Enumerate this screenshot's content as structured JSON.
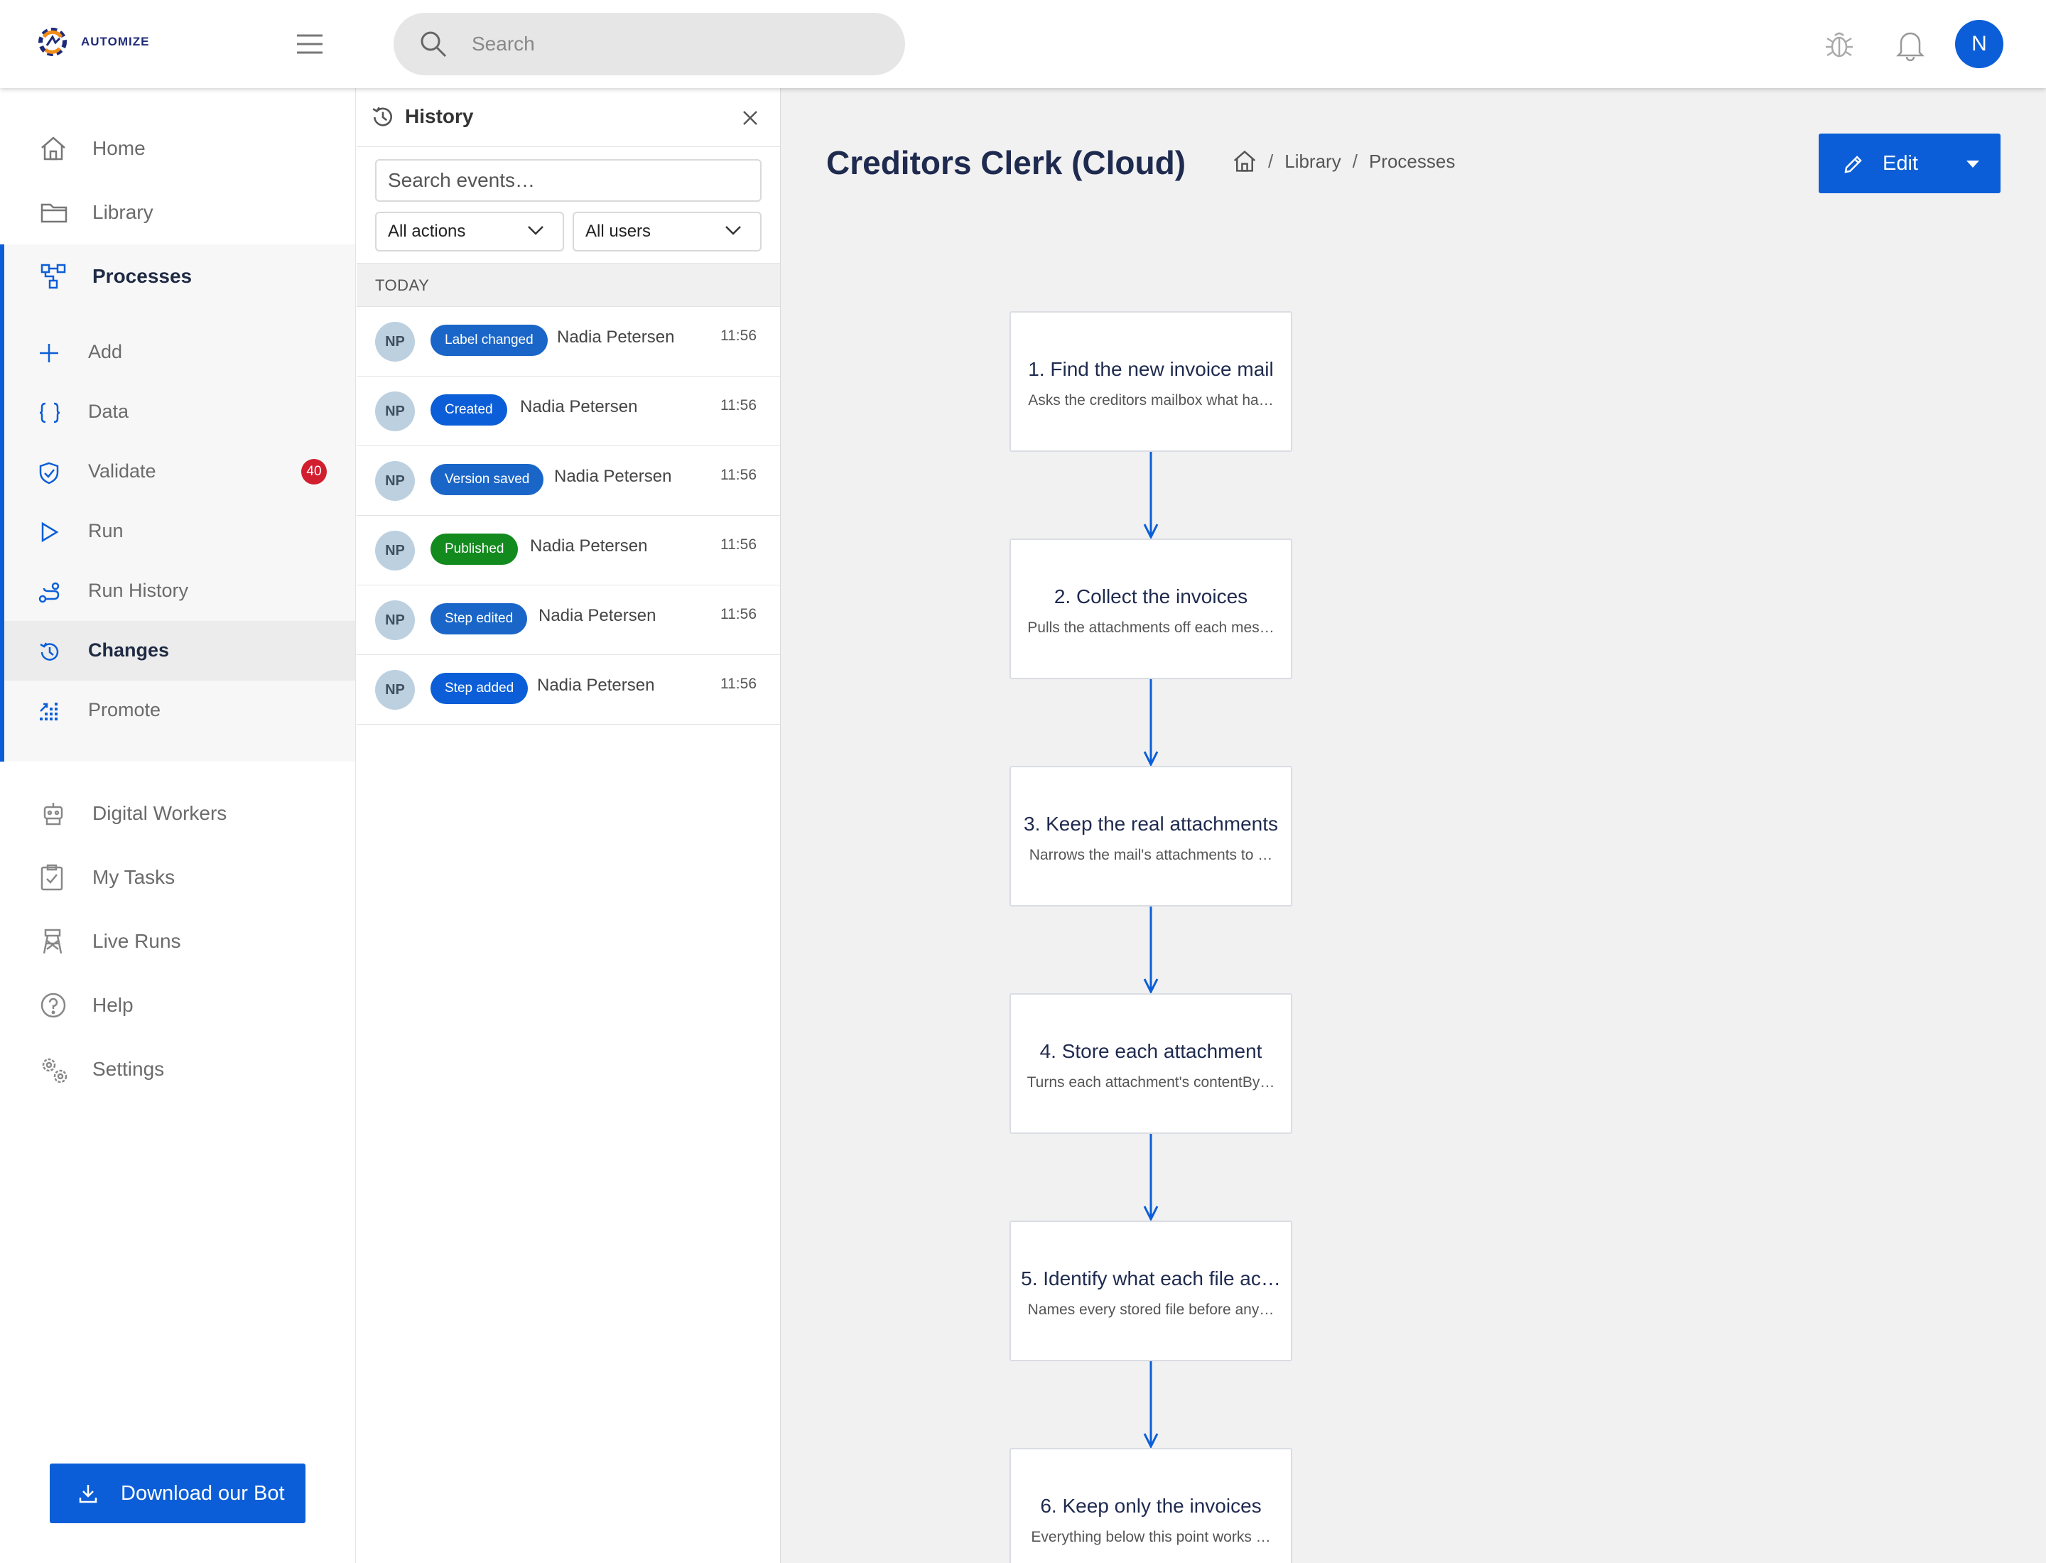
{
  "app": {
    "logo_text": "AUTOMIZE",
    "search_placeholder": "Search",
    "user_initial": "N",
    "brand_color": "#0b5ed7"
  },
  "sidebar": {
    "items_top": [
      {
        "label": "Home",
        "icon": "home-icon"
      },
      {
        "label": "Library",
        "icon": "folder-icon"
      },
      {
        "label": "Processes",
        "icon": "process-icon",
        "active": true
      }
    ],
    "sub_items": [
      {
        "label": "Add",
        "icon": "plus-icon"
      },
      {
        "label": "Data",
        "icon": "braces-icon"
      },
      {
        "label": "Validate",
        "icon": "shield-check-icon",
        "badge": "40"
      },
      {
        "label": "Run",
        "icon": "play-icon"
      },
      {
        "label": "Run History",
        "icon": "route-icon"
      },
      {
        "label": "Changes",
        "icon": "history-icon",
        "current": true
      },
      {
        "label": "Promote",
        "icon": "promote-icon"
      }
    ],
    "items_bottom": [
      {
        "label": "Digital Workers",
        "icon": "robot-icon"
      },
      {
        "label": "My Tasks",
        "icon": "clipboard-check-icon"
      },
      {
        "label": "Live Runs",
        "icon": "tower-icon"
      },
      {
        "label": "Help",
        "icon": "help-circle-icon"
      },
      {
        "label": "Settings",
        "icon": "gears-icon"
      }
    ],
    "download_label": "Download our Bot"
  },
  "history": {
    "title": "History",
    "search_placeholder": "Search events…",
    "filter_actions": "All actions",
    "filter_users": "All users",
    "group_label": "TODAY",
    "events": [
      {
        "initials": "NP",
        "action": "Label changed",
        "action_color": "#1a66c8",
        "user": "Nadia Petersen",
        "time": "11:56"
      },
      {
        "initials": "NP",
        "action": "Created",
        "action_color": "#0b5ed7",
        "user": "Nadia Petersen",
        "time": "11:56"
      },
      {
        "initials": "NP",
        "action": "Version saved",
        "action_color": "#1a66c8",
        "user": "Nadia Petersen",
        "time": "11:56"
      },
      {
        "initials": "NP",
        "action": "Published",
        "action_color": "#138a1e",
        "user": "Nadia Petersen",
        "time": "11:56"
      },
      {
        "initials": "NP",
        "action": "Step edited",
        "action_color": "#1a66c8",
        "user": "Nadia Petersen",
        "time": "11:56"
      },
      {
        "initials": "NP",
        "action": "Step added",
        "action_color": "#0b5ed7",
        "user": "Nadia Petersen",
        "time": "11:56"
      }
    ]
  },
  "main": {
    "title": "Creditors Clerk (Cloud)",
    "breadcrumb": [
      "Library",
      "Processes"
    ],
    "edit_label": "Edit",
    "steps": [
      {
        "title": "1. Find the new invoice mail",
        "desc": "Asks the creditors mailbox what ha…"
      },
      {
        "title": "2. Collect the invoices",
        "desc": "Pulls the attachments off each mes…"
      },
      {
        "title": "3. Keep the real attachments",
        "desc": "Narrows the mail's attachments to …"
      },
      {
        "title": "4. Store each attachment",
        "desc": "Turns each attachment's contentBy…"
      },
      {
        "title": "5. Identify what each file ac…",
        "desc": "Names every stored file before any…"
      },
      {
        "title": "6. Keep only the invoices",
        "desc": "Everything below this point works …"
      }
    ]
  }
}
